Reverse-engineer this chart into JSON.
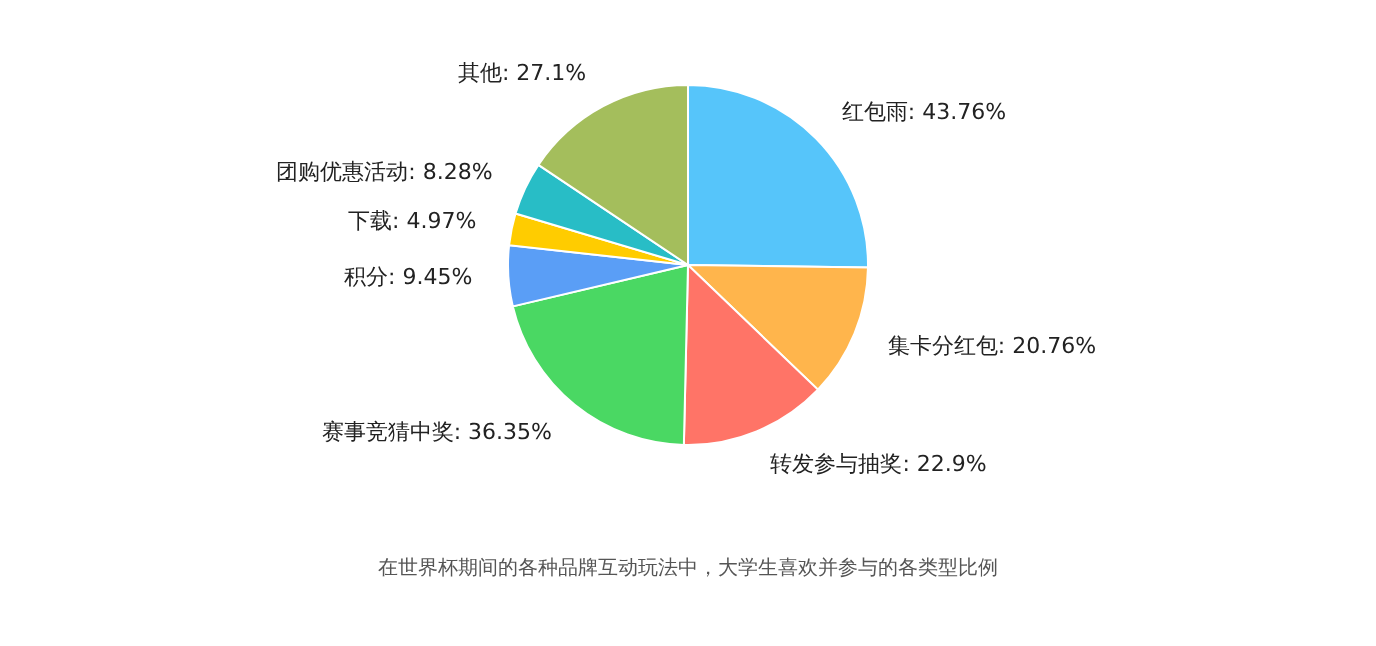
{
  "chart_data": {
    "type": "pie",
    "categories": [
      "红包雨",
      "集卡分红包",
      "转发参与抽奖",
      "赛事竞猜中奖",
      "积分",
      "下载",
      "团购优惠活动",
      "其他"
    ],
    "values": [
      43.76,
      20.76,
      22.9,
      36.35,
      9.45,
      4.97,
      8.28,
      27.1
    ],
    "colors": [
      "#56c5fa",
      "#ffb54c",
      "#ff7467",
      "#4ad863",
      "#5a9ef6",
      "#ffcc00",
      "#28bdc6",
      "#a4be5c"
    ],
    "value_labels": [
      "43.76%",
      "20.76%",
      "22.9%",
      "36.35%",
      "9.45%",
      "4.97%",
      "8.28%",
      "27.1%"
    ],
    "annotations": [
      "在世界杯期间的各种品牌互动玩法中，大学生喜欢并参与的各类型比例"
    ]
  }
}
